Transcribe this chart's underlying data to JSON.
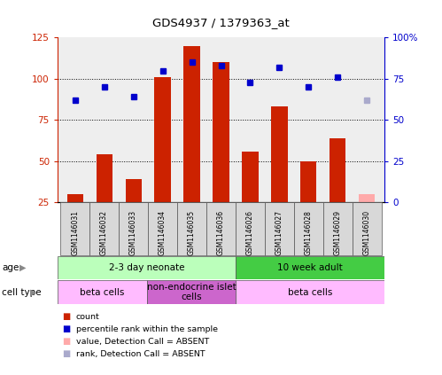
{
  "title": "GDS4937 / 1379363_at",
  "samples": [
    "GSM1146031",
    "GSM1146032",
    "GSM1146033",
    "GSM1146034",
    "GSM1146035",
    "GSM1146036",
    "GSM1146026",
    "GSM1146027",
    "GSM1146028",
    "GSM1146029",
    "GSM1146030"
  ],
  "count_values": [
    30,
    54,
    39,
    101,
    120,
    110,
    56,
    83,
    50,
    64,
    null
  ],
  "rank_values": [
    62,
    70,
    64,
    80,
    85,
    83,
    73,
    82,
    70,
    76,
    null
  ],
  "absent_count": [
    null,
    null,
    null,
    null,
    null,
    null,
    null,
    null,
    null,
    null,
    30
  ],
  "absent_rank": [
    null,
    null,
    null,
    null,
    null,
    null,
    null,
    null,
    null,
    null,
    62
  ],
  "ylim_left": [
    25,
    125
  ],
  "ylim_right": [
    0,
    100
  ],
  "yticks_left": [
    25,
    50,
    75,
    100,
    125
  ],
  "yticks_right": [
    0,
    25,
    50,
    75,
    100
  ],
  "yticklabels_right": [
    "0",
    "25",
    "50",
    "75",
    "100%"
  ],
  "bar_color": "#cc2200",
  "rank_color": "#0000cc",
  "absent_bar_color": "#ffaaaa",
  "absent_rank_color": "#aaaacc",
  "age_groups": [
    {
      "label": "2-3 day neonate",
      "start": 0,
      "end": 6,
      "color": "#bbffbb"
    },
    {
      "label": "10 week adult",
      "start": 6,
      "end": 11,
      "color": "#44cc44"
    }
  ],
  "cell_groups": [
    {
      "label": "beta cells",
      "start": 0,
      "end": 3,
      "color": "#ffbbff"
    },
    {
      "label": "non-endocrine islet\ncells",
      "start": 3,
      "end": 6,
      "color": "#cc66cc"
    },
    {
      "label": "beta cells",
      "start": 6,
      "end": 11,
      "color": "#ffbbff"
    }
  ],
  "legend_items": [
    {
      "color": "#cc2200",
      "label": "count"
    },
    {
      "color": "#0000cc",
      "label": "percentile rank within the sample"
    },
    {
      "color": "#ffaaaa",
      "label": "value, Detection Call = ABSENT"
    },
    {
      "color": "#aaaacc",
      "label": "rank, Detection Call = ABSENT"
    }
  ],
  "background_color": "#ffffff",
  "rank_marker_size": 5,
  "bar_width": 0.55
}
